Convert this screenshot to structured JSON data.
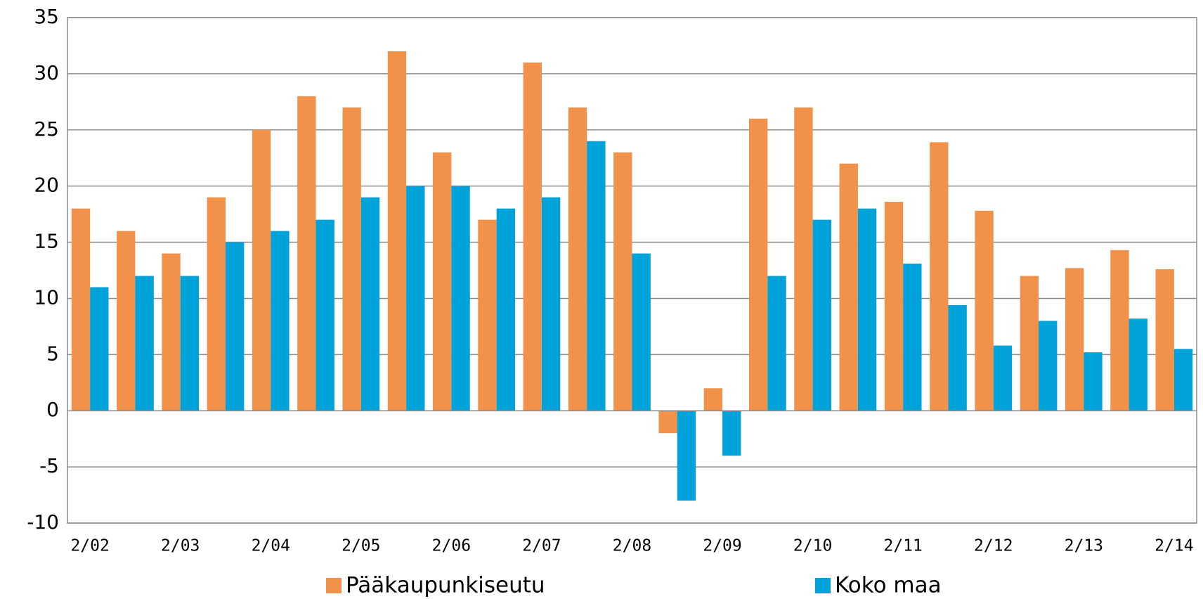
{
  "chart_data": {
    "type": "bar",
    "categories": [
      "2/02",
      null,
      "2/03",
      null,
      "2/04",
      null,
      "2/05",
      null,
      "2/06",
      null,
      "2/07",
      null,
      "2/08",
      null,
      "2/09",
      null,
      "2/10",
      null,
      "2/11",
      null,
      "2/12",
      null,
      "2/13",
      null,
      "2/14"
    ],
    "series": [
      {
        "name": "Pääkaupunkiseutu",
        "color": "#f1914a",
        "values": [
          18,
          16,
          14,
          19,
          25,
          28,
          27,
          32,
          23,
          17,
          31,
          27,
          23,
          -2,
          2,
          26,
          27,
          22,
          18.6,
          23.9,
          17.8,
          12,
          12.7,
          14.3,
          12.6
        ]
      },
      {
        "name": "Koko maa",
        "color": "#00a3d9",
        "values": [
          11,
          12,
          12,
          15,
          16,
          17,
          19,
          20,
          20,
          18,
          19,
          24,
          14,
          -8,
          -4,
          12,
          17,
          18,
          13.1,
          9.4,
          5.8,
          8,
          5.2,
          8.2,
          5.5
        ]
      }
    ],
    "ylim": [
      -10,
      35
    ],
    "yticks": [
      -10,
      -5,
      0,
      5,
      10,
      15,
      20,
      25,
      30,
      35
    ],
    "grid": true,
    "legend": "bottom"
  }
}
